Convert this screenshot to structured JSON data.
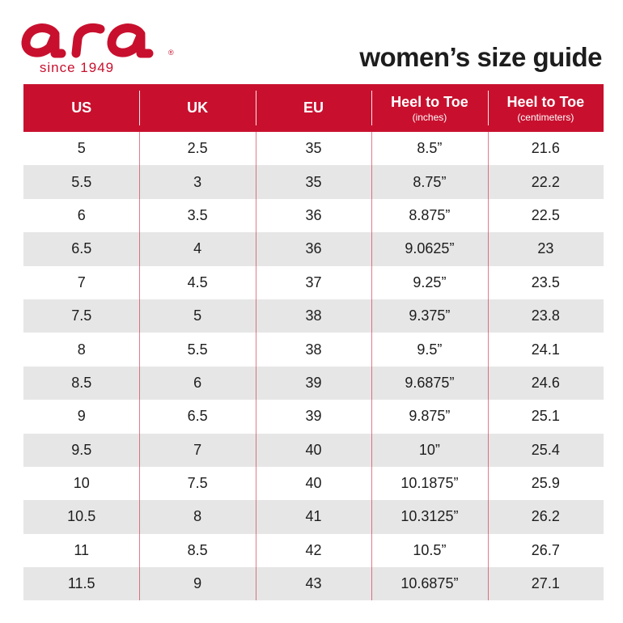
{
  "brand": {
    "logo_text": "ara",
    "tagline": "since 1949",
    "registered_mark": "®",
    "color": "#c8102e"
  },
  "title": "women’s size guide",
  "columns": [
    {
      "label": "US",
      "sub": ""
    },
    {
      "label": "UK",
      "sub": ""
    },
    {
      "label": "EU",
      "sub": ""
    },
    {
      "label": "Heel to Toe",
      "sub": "(inches)"
    },
    {
      "label": "Heel to Toe",
      "sub": "(centimeters)"
    }
  ],
  "rows": [
    [
      "5",
      "2.5",
      "35",
      "8.5”",
      "21.6"
    ],
    [
      "5.5",
      "3",
      "35",
      "8.75”",
      "22.2"
    ],
    [
      "6",
      "3.5",
      "36",
      "8.875”",
      "22.5"
    ],
    [
      "6.5",
      "4",
      "36",
      "9.0625”",
      "23"
    ],
    [
      "7",
      "4.5",
      "37",
      "9.25”",
      "23.5"
    ],
    [
      "7.5",
      "5",
      "38",
      "9.375”",
      "23.8"
    ],
    [
      "8",
      "5.5",
      "38",
      "9.5”",
      "24.1"
    ],
    [
      "8.5",
      "6",
      "39",
      "9.6875”",
      "24.6"
    ],
    [
      "9",
      "6.5",
      "39",
      "9.875”",
      "25.1"
    ],
    [
      "9.5",
      "7",
      "40",
      "10”",
      "25.4"
    ],
    [
      "10",
      "7.5",
      "40",
      "10.1875”",
      "25.9"
    ],
    [
      "10.5",
      "8",
      "41",
      "10.3125”",
      "26.2"
    ],
    [
      "11",
      "8.5",
      "42",
      "10.5”",
      "26.7"
    ],
    [
      "11.5",
      "9",
      "43",
      "10.6875”",
      "27.1"
    ]
  ],
  "colors": {
    "header_bg": "#c8102e",
    "alt_row_bg": "#e6e6e6",
    "text": "#1d1d1d"
  }
}
